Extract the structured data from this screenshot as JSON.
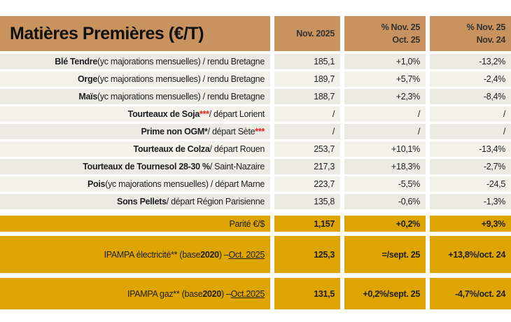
{
  "header": {
    "title": "Matières Premières (€/T)",
    "col_price": "Nov. 2025",
    "col_mom": [
      "% Nov. 25",
      "Oct. 25"
    ],
    "col_yoy": [
      "% Nov. 25",
      "Nov. 24"
    ]
  },
  "colors": {
    "header": "#c8935f",
    "gold": "#dea500",
    "red_asterisk": "#e02020"
  },
  "rows": [
    {
      "label": [
        {
          "t": "Blé Tendre",
          "s": "b"
        },
        {
          "t": " (yc majorations mensuelles) / rendu Bretagne",
          "s": ""
        }
      ],
      "price": "185,1",
      "mom": "+1,0%",
      "yoy": "-13,2%"
    },
    {
      "label": [
        {
          "t": "Orge",
          "s": "b"
        },
        {
          "t": " (yc majorations mensuelles) / rendu Bretagne",
          "s": ""
        }
      ],
      "price": "189,7",
      "mom": "+5,7%",
      "yoy": "-2,4%"
    },
    {
      "label": [
        {
          "t": "Maïs",
          "s": "b"
        },
        {
          "t": " (yc majorations mensuelles) / rendu Bretagne",
          "s": ""
        }
      ],
      "price": "188,7",
      "mom": "+2,3%",
      "yoy": "-8,4%"
    },
    {
      "label": [
        {
          "t": "Tourteaux de Soja",
          "s": "b"
        },
        {
          "t": "***",
          "s": "red"
        },
        {
          "t": " / départ Lorient",
          "s": ""
        }
      ],
      "price": "/",
      "mom": "/",
      "yoy": "/"
    },
    {
      "label": [
        {
          "t": "Prime non OGM*",
          "s": "b"
        },
        {
          "t": " / départ Sète",
          "s": ""
        },
        {
          "t": "***",
          "s": "red"
        }
      ],
      "price": "/",
      "mom": "/",
      "yoy": "/"
    },
    {
      "label": [
        {
          "t": "Tourteaux de Colza",
          "s": "b"
        },
        {
          "t": " / départ Rouen",
          "s": ""
        }
      ],
      "price": "253,7",
      "mom": "+10,1%",
      "yoy": "-13,4%"
    },
    {
      "label": [
        {
          "t": "Tourteaux de Tournesol 28-30 %",
          "s": "b"
        },
        {
          "t": " / Saint-Nazaire",
          "s": ""
        }
      ],
      "price": "217,3",
      "mom": "+18,3%",
      "yoy": "-2,7%"
    },
    {
      "label": [
        {
          "t": "Pois",
          "s": "b"
        },
        {
          "t": " (yc majorations mensuelles) / départ Marne",
          "s": ""
        }
      ],
      "price": "223,7",
      "mom": "-5,5%",
      "yoy": "-24,5"
    },
    {
      "label": [
        {
          "t": "Sons Pellets",
          "s": "b"
        },
        {
          "t": " / départ Région Parisienne",
          "s": ""
        }
      ],
      "price": "135,8",
      "mom": "-0,6%",
      "yoy": "-1,3%"
    }
  ],
  "gold_rows": [
    {
      "label": [
        {
          "t": "Parité €/$",
          "s": ""
        }
      ],
      "price": "1,157",
      "mom": "+0,2%",
      "yoy": "+9,3%"
    },
    {
      "label": [
        {
          "t": "IPAMPA électricité** (base ",
          "s": ""
        },
        {
          "t": "2020",
          "s": "b"
        },
        {
          "t": ") – ",
          "s": ""
        },
        {
          "t": "Oct. 2025",
          "s": "u"
        }
      ],
      "price": "125,3",
      "mom": "=/sept. 25",
      "yoy": "+13,8%/oct. 24"
    },
    {
      "label": [
        {
          "t": "IPAMPA gaz** (base ",
          "s": ""
        },
        {
          "t": "2020",
          "s": "b"
        },
        {
          "t": ") – ",
          "s": ""
        },
        {
          "t": "Oct.2025",
          "s": "u"
        }
      ],
      "price": "131,5",
      "mom": "+0,2%/sept. 25",
      "yoy": "-4,7%/oct. 24"
    }
  ]
}
